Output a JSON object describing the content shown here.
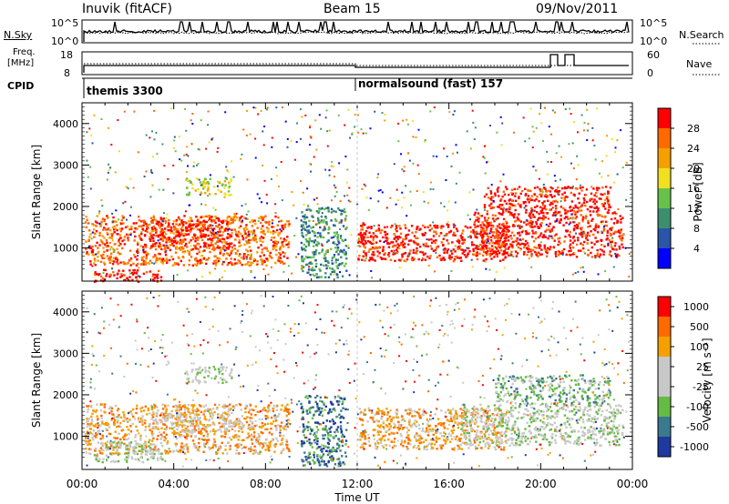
{
  "header": {
    "station": "Inuvik (fitACF)",
    "beam": "Beam 15",
    "date": "09/Nov/2011"
  },
  "top_panels": {
    "nsky_label": "N.Sky",
    "nsearch_label": "N.Search",
    "freq_label_1": "Freq.",
    "freq_label_2": "[MHz]",
    "nave_label": "Nave",
    "cpid_label": "CPID",
    "nsky_ticks": [
      "10^5",
      "10^0"
    ],
    "nsearch_ticks": [
      "10^5",
      "10^0"
    ],
    "freq_ticks": [
      "18",
      "8"
    ],
    "nave_ticks": [
      "60",
      "0"
    ],
    "cpid_segments": [
      {
        "start_hr": 0.0,
        "end_hr": 12.0,
        "label": "themis 3300"
      },
      {
        "start_hr": 12.0,
        "end_hr": 24.0,
        "label": "normalsound (fast) 157"
      }
    ]
  },
  "colors": {
    "power_scale": [
      "#0000ff",
      "#2a55a8",
      "#3c8f6e",
      "#66c24a",
      "#f0e020",
      "#f5a000",
      "#ff6a00",
      "#ff0000"
    ],
    "velocity_scale": [
      "#1e3aa0",
      "#3a7a8e",
      "#66bb44",
      "#c8c8c8",
      "#c8c8c8",
      "#f5a000",
      "#ff6a00",
      "#ff0000"
    ]
  },
  "chart_data": [
    {
      "type": "heatmap",
      "panel": "power",
      "ylabel": "Slant Range [km]",
      "yticks": [
        "4000",
        "3000",
        "2000",
        "1000"
      ],
      "ylim": [
        200,
        4500
      ],
      "xlim": [
        0,
        24
      ],
      "colorbar_label": "Power [dB]",
      "colorbar_ticks": [
        "28",
        "24",
        "20",
        "16",
        "12",
        "8",
        "4"
      ],
      "regions": [
        {
          "x0": 0.1,
          "x1": 9.0,
          "y0": 600,
          "y1": 1800,
          "level": 6
        },
        {
          "x0": 2.5,
          "x1": 6.5,
          "y0": 1000,
          "y1": 1700,
          "level": 7
        },
        {
          "x0": 12.0,
          "x1": 18.5,
          "y0": 700,
          "y1": 1600,
          "level": 7
        },
        {
          "x0": 17.0,
          "x1": 23.6,
          "y0": 800,
          "y1": 1900,
          "level": 7
        },
        {
          "x0": 17.5,
          "x1": 23.0,
          "y0": 1900,
          "y1": 2500,
          "level": 7
        },
        {
          "x0": 4.5,
          "x1": 6.5,
          "y0": 2300,
          "y1": 2700,
          "level": 4
        },
        {
          "x0": 9.5,
          "x1": 11.5,
          "y0": 300,
          "y1": 2000,
          "level": 2
        },
        {
          "x0": 0.5,
          "x1": 3.5,
          "y0": 200,
          "y1": 500,
          "level": 7
        }
      ]
    },
    {
      "type": "heatmap",
      "panel": "velocity",
      "ylabel": "Slant Range [km]",
      "yticks": [
        "4000",
        "3000",
        "2000",
        "1000"
      ],
      "ylim": [
        200,
        4500
      ],
      "xlim": [
        0,
        24
      ],
      "xlabel": "Time UT",
      "xticks": [
        "00:00",
        "04:00",
        "08:00",
        "12:00",
        "16:00",
        "20:00",
        "00:00"
      ],
      "colorbar_label": "Velocity [m s⁻¹]",
      "colorbar_ticks": [
        "1000",
        "500",
        "100",
        "25",
        "-25",
        "-100",
        "-500",
        "-1000"
      ],
      "regions": [
        {
          "x0": 0.1,
          "x1": 9.0,
          "y0": 600,
          "y1": 1800,
          "level": 5
        },
        {
          "x0": 3.0,
          "x1": 7.0,
          "y0": 1100,
          "y1": 1600,
          "level": 4
        },
        {
          "x0": 12.0,
          "x1": 18.5,
          "y0": 700,
          "y1": 1700,
          "level": 5
        },
        {
          "x0": 16.5,
          "x1": 23.6,
          "y0": 800,
          "y1": 1800,
          "level": 3
        },
        {
          "x0": 18.0,
          "x1": 23.0,
          "y0": 1800,
          "y1": 2500,
          "level": 2
        },
        {
          "x0": 4.5,
          "x1": 6.5,
          "y0": 2300,
          "y1": 2700,
          "level": 3
        },
        {
          "x0": 9.5,
          "x1": 11.5,
          "y0": 300,
          "y1": 2000,
          "level": 1
        },
        {
          "x0": 0.5,
          "x1": 3.5,
          "y0": 400,
          "y1": 900,
          "level": 3
        }
      ]
    }
  ]
}
